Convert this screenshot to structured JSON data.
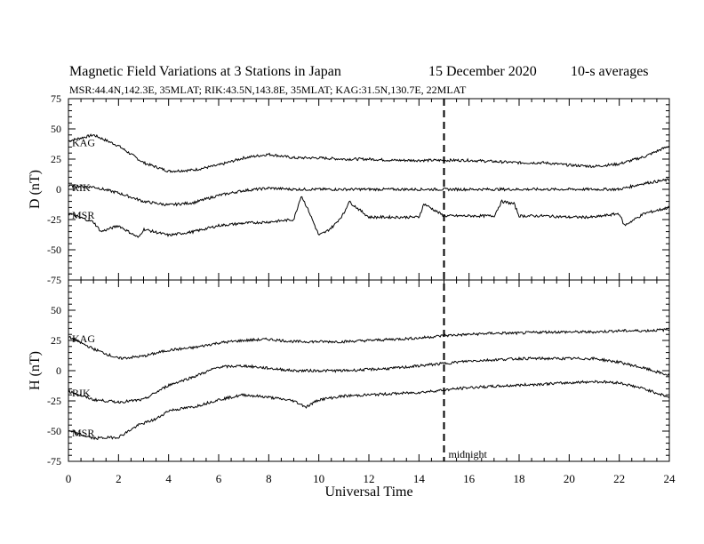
{
  "header": {
    "title": "Magnetic Field Variations at 3 Stations in Japan",
    "date": "15 December 2020",
    "averaging": "10-s averages",
    "stations_line": "MSR:44.4N,142.3E, 35MLAT;  RIK:43.5N,143.8E, 35MLAT;  KAG:31.5N,130.7E, 22MLAT"
  },
  "chart_data": [
    {
      "type": "line",
      "panel": "top",
      "ylabel": "D (nT)",
      "ylim": [
        -75,
        75
      ],
      "yticks": [
        -75,
        -50,
        -25,
        0,
        25,
        50,
        75
      ],
      "xlim": [
        0,
        24
      ],
      "series": [
        {
          "name": "KAG",
          "x": [
            0,
            1,
            2,
            3,
            4,
            5,
            6,
            7,
            8,
            9,
            10,
            11,
            12,
            13,
            14,
            15,
            16,
            17,
            18,
            19,
            20,
            21,
            22,
            23,
            24
          ],
          "values": [
            40,
            45,
            36,
            22,
            15,
            16,
            20,
            26,
            29,
            26,
            26,
            25,
            25,
            24,
            24,
            24,
            24,
            23,
            22,
            22,
            20,
            19,
            21,
            27,
            36
          ]
        },
        {
          "name": "RIK",
          "x": [
            0,
            1,
            2,
            3,
            4,
            5,
            6,
            7,
            8,
            9,
            10,
            11,
            12,
            13,
            14,
            15,
            16,
            17,
            18,
            19,
            20,
            21,
            22,
            23,
            24
          ],
          "values": [
            3,
            2,
            -3,
            -10,
            -13,
            -11,
            -5,
            -1,
            1,
            0,
            0,
            0,
            0,
            0,
            0,
            0,
            0,
            0,
            0,
            0,
            0,
            0,
            0,
            5,
            8
          ]
        },
        {
          "name": "MSR",
          "x": [
            0,
            1,
            1.3,
            2,
            2.8,
            3,
            4,
            5,
            6,
            7,
            8,
            9,
            9.3,
            9.6,
            10,
            10.3,
            10.6,
            11,
            11.2,
            12,
            13,
            14,
            14.2,
            15,
            16,
            17,
            17.3,
            17.8,
            18,
            19,
            20,
            21,
            22,
            22.2,
            23,
            24
          ],
          "values": [
            -20,
            -27,
            -35,
            -30,
            -40,
            -33,
            -38,
            -35,
            -30,
            -28,
            -27,
            -25,
            -5,
            -18,
            -38,
            -35,
            -30,
            -20,
            -10,
            -23,
            -23,
            -23,
            -12,
            -22,
            -22,
            -22,
            -10,
            -12,
            -22,
            -22,
            -23,
            -23,
            -20,
            -30,
            -20,
            -15
          ]
        }
      ]
    },
    {
      "type": "line",
      "panel": "bottom",
      "ylabel": "H (nT)",
      "xlabel": "Universal Time",
      "ylim": [
        -75,
        75
      ],
      "yticks": [
        -75,
        -50,
        -25,
        0,
        25,
        50
      ],
      "xlim": [
        0,
        24
      ],
      "xticks": [
        0,
        2,
        4,
        6,
        8,
        10,
        12,
        14,
        16,
        18,
        20,
        22,
        24
      ],
      "series": [
        {
          "name": "KAG",
          "x": [
            0,
            1,
            2,
            3,
            4,
            5,
            6,
            7,
            8,
            9,
            10,
            11,
            12,
            13,
            14,
            15,
            16,
            17,
            18,
            19,
            20,
            21,
            22,
            23,
            24
          ],
          "values": [
            28,
            18,
            10,
            12,
            17,
            19,
            23,
            25,
            26,
            24,
            24,
            24,
            25,
            26,
            27,
            29,
            30,
            31,
            31,
            32,
            32,
            32,
            33,
            33,
            34
          ]
        },
        {
          "name": "RIK",
          "x": [
            0,
            1,
            2,
            3,
            4,
            5,
            6,
            7,
            8,
            9,
            10,
            11,
            12,
            13,
            14,
            15,
            16,
            17,
            18,
            19,
            20,
            21,
            22,
            23,
            24
          ],
          "values": [
            -17,
            -24,
            -26,
            -24,
            -12,
            -5,
            3,
            4,
            2,
            0,
            0,
            0,
            1,
            2,
            4,
            6,
            8,
            9,
            10,
            10,
            10,
            10,
            7,
            2,
            -4
          ]
        },
        {
          "name": "MSR",
          "x": [
            0,
            1,
            2,
            2.8,
            3.5,
            4,
            5,
            6,
            7,
            8,
            9,
            9.5,
            10,
            11,
            12,
            13,
            14,
            15,
            16,
            17,
            18,
            19,
            20,
            21,
            22,
            23,
            24
          ],
          "values": [
            -50,
            -56,
            -55,
            -45,
            -40,
            -33,
            -30,
            -24,
            -20,
            -22,
            -25,
            -30,
            -24,
            -21,
            -20,
            -19,
            -18,
            -16,
            -14,
            -13,
            -12,
            -11,
            -10,
            -9,
            -10,
            -15,
            -22
          ]
        }
      ]
    }
  ],
  "midnight_marker": {
    "x": 15,
    "label": "midnight"
  }
}
